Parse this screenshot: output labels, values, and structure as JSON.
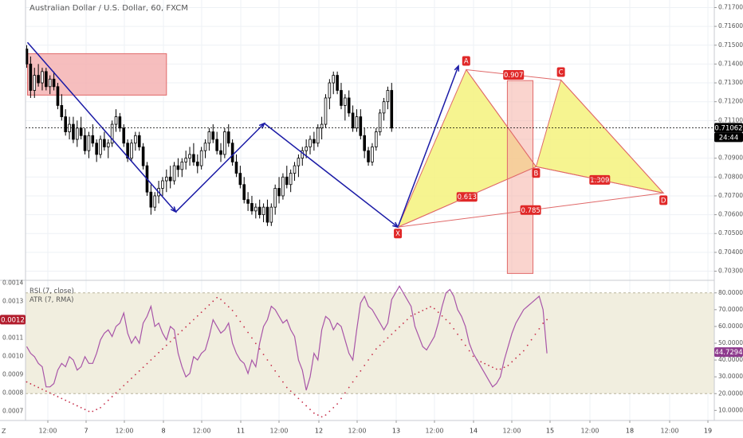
{
  "chart_data": [
    {
      "type": "candlestick",
      "title": "Australian Dollar / U.S. Dollar, 60, FXCM",
      "x_labels": [
        "12:00",
        "7",
        "12:00",
        "8",
        "12:00",
        "11",
        "12:00",
        "12",
        "12:00",
        "13",
        "12:00",
        "14",
        "12:00",
        "15",
        "12:00",
        "18",
        "12:00",
        "19"
      ],
      "price_ticks": [
        "0.71700",
        "0.71600",
        "0.71500",
        "0.71400",
        "0.71300",
        "0.71200",
        "0.71100",
        "0.71000",
        "0.70900",
        "0.70800",
        "0.70700",
        "0.70600",
        "0.70500",
        "0.70400",
        "0.70300"
      ],
      "ylim": [
        0.7026,
        0.7174
      ],
      "last_price": "0.71062",
      "countdown": "24:44",
      "candles": [
        [
          0.7148,
          0.715,
          0.7138,
          0.714
        ],
        [
          0.714,
          0.7144,
          0.7122,
          0.7126
        ],
        [
          0.7126,
          0.7138,
          0.7122,
          0.7134
        ],
        [
          0.7134,
          0.714,
          0.7128,
          0.713
        ],
        [
          0.713,
          0.7138,
          0.7126,
          0.7136
        ],
        [
          0.7136,
          0.7138,
          0.7126,
          0.7128
        ],
        [
          0.7128,
          0.7134,
          0.7124,
          0.7132
        ],
        [
          0.7132,
          0.7136,
          0.7126,
          0.7128
        ],
        [
          0.7128,
          0.713,
          0.7116,
          0.7118
        ],
        [
          0.7118,
          0.7124,
          0.711,
          0.7112
        ],
        [
          0.7112,
          0.7116,
          0.7102,
          0.7104
        ],
        [
          0.7104,
          0.7112,
          0.71,
          0.7108
        ],
        [
          0.7108,
          0.7112,
          0.7098,
          0.71
        ],
        [
          0.71,
          0.711,
          0.7096,
          0.7106
        ],
        [
          0.7106,
          0.7112,
          0.71,
          0.7102
        ],
        [
          0.7102,
          0.7106,
          0.7092,
          0.7094
        ],
        [
          0.7094,
          0.7104,
          0.709,
          0.7102
        ],
        [
          0.7102,
          0.7108,
          0.7096,
          0.7098
        ],
        [
          0.7098,
          0.71,
          0.7088,
          0.7092
        ],
        [
          0.7092,
          0.7102,
          0.709,
          0.71
        ],
        [
          0.71,
          0.7104,
          0.7094,
          0.7096
        ],
        [
          0.7096,
          0.71,
          0.709,
          0.7098
        ],
        [
          0.7098,
          0.711,
          0.7096,
          0.7108
        ],
        [
          0.7108,
          0.7116,
          0.7104,
          0.7112
        ],
        [
          0.7112,
          0.7114,
          0.7104,
          0.7106
        ],
        [
          0.7106,
          0.7108,
          0.7096,
          0.7098
        ],
        [
          0.7098,
          0.71,
          0.7088,
          0.709
        ],
        [
          0.709,
          0.71,
          0.7088,
          0.7098
        ],
        [
          0.7098,
          0.7104,
          0.7094,
          0.7102
        ],
        [
          0.7102,
          0.7104,
          0.7094,
          0.7096
        ],
        [
          0.7096,
          0.7098,
          0.7084,
          0.7086
        ],
        [
          0.7086,
          0.7088,
          0.707,
          0.7072
        ],
        [
          0.7072,
          0.7076,
          0.706,
          0.7064
        ],
        [
          0.7064,
          0.7072,
          0.7062,
          0.707
        ],
        [
          0.707,
          0.7078,
          0.7066,
          0.7074
        ],
        [
          0.7074,
          0.708,
          0.707,
          0.7078
        ],
        [
          0.7078,
          0.7084,
          0.7072,
          0.708
        ],
        [
          0.708,
          0.7086,
          0.7074,
          0.7078
        ],
        [
          0.7078,
          0.7088,
          0.7076,
          0.7086
        ],
        [
          0.7086,
          0.709,
          0.708,
          0.7084
        ],
        [
          0.7084,
          0.709,
          0.708,
          0.7088
        ],
        [
          0.7088,
          0.7094,
          0.7084,
          0.709
        ],
        [
          0.709,
          0.7096,
          0.7086,
          0.7092
        ],
        [
          0.7092,
          0.7098,
          0.7086,
          0.7088
        ],
        [
          0.7088,
          0.7092,
          0.7082,
          0.7086
        ],
        [
          0.7086,
          0.7096,
          0.7084,
          0.7094
        ],
        [
          0.7094,
          0.71,
          0.709,
          0.7098
        ],
        [
          0.7098,
          0.7106,
          0.7094,
          0.7104
        ],
        [
          0.7104,
          0.7108,
          0.7098,
          0.71
        ],
        [
          0.71,
          0.7104,
          0.7092,
          0.7094
        ],
        [
          0.7094,
          0.7098,
          0.7088,
          0.7092
        ],
        [
          0.7092,
          0.7106,
          0.709,
          0.7104
        ],
        [
          0.7104,
          0.7108,
          0.7096,
          0.7098
        ],
        [
          0.7098,
          0.71,
          0.7086,
          0.7088
        ],
        [
          0.7088,
          0.7092,
          0.708,
          0.7082
        ],
        [
          0.7082,
          0.7086,
          0.7074,
          0.7076
        ],
        [
          0.7076,
          0.708,
          0.7066,
          0.7068
        ],
        [
          0.7068,
          0.7072,
          0.7062,
          0.7066
        ],
        [
          0.7066,
          0.707,
          0.706,
          0.7062
        ],
        [
          0.7062,
          0.7066,
          0.7058,
          0.7064
        ],
        [
          0.7064,
          0.7068,
          0.7058,
          0.706
        ],
        [
          0.706,
          0.7066,
          0.7056,
          0.7064
        ],
        [
          0.7064,
          0.7068,
          0.7054,
          0.7056
        ],
        [
          0.7056,
          0.7066,
          0.7054,
          0.7064
        ],
        [
          0.7064,
          0.7076,
          0.706,
          0.7074
        ],
        [
          0.7074,
          0.708,
          0.7066,
          0.707
        ],
        [
          0.707,
          0.7082,
          0.7068,
          0.708
        ],
        [
          0.708,
          0.7086,
          0.7074,
          0.7076
        ],
        [
          0.7076,
          0.7084,
          0.7072,
          0.7082
        ],
        [
          0.7082,
          0.7088,
          0.7078,
          0.7086
        ],
        [
          0.7086,
          0.7092,
          0.708,
          0.709
        ],
        [
          0.709,
          0.7096,
          0.7086,
          0.7094
        ],
        [
          0.7094,
          0.71,
          0.709,
          0.7096
        ],
        [
          0.7096,
          0.7102,
          0.7092,
          0.71
        ],
        [
          0.71,
          0.7104,
          0.7094,
          0.7098
        ],
        [
          0.7098,
          0.7108,
          0.7096,
          0.7106
        ],
        [
          0.7106,
          0.7112,
          0.71,
          0.7108
        ],
        [
          0.7108,
          0.7124,
          0.7106,
          0.7122
        ],
        [
          0.7122,
          0.7132,
          0.7116,
          0.713
        ],
        [
          0.713,
          0.7136,
          0.7124,
          0.7134
        ],
        [
          0.7134,
          0.7136,
          0.7124,
          0.7126
        ],
        [
          0.7126,
          0.713,
          0.7116,
          0.7118
        ],
        [
          0.7118,
          0.7124,
          0.711,
          0.7122
        ],
        [
          0.7122,
          0.7126,
          0.7112,
          0.7114
        ],
        [
          0.7114,
          0.7118,
          0.7104,
          0.7106
        ],
        [
          0.7106,
          0.7116,
          0.7104,
          0.7112
        ],
        [
          0.7112,
          0.7116,
          0.71,
          0.7102
        ],
        [
          0.7102,
          0.7106,
          0.709,
          0.7094
        ],
        [
          0.7094,
          0.7096,
          0.7086,
          0.7088
        ],
        [
          0.7088,
          0.7098,
          0.7086,
          0.7096
        ],
        [
          0.7096,
          0.7106,
          0.7094,
          0.7104
        ],
        [
          0.7104,
          0.7116,
          0.7102,
          0.7114
        ],
        [
          0.7114,
          0.7122,
          0.711,
          0.712
        ],
        [
          0.712,
          0.7128,
          0.7116,
          0.7126
        ],
        [
          0.7126,
          0.713,
          0.7104,
          0.7106
        ]
      ],
      "harmonic_pattern": {
        "points": [
          {
            "label": "X",
            "time": 95.6,
            "price": 0.70534
          },
          {
            "label": "A",
            "time": 113.2,
            "price": 0.7137
          },
          {
            "label": "B",
            "time": 131.2,
            "price": 0.70855
          },
          {
            "label": "C",
            "time": 137.6,
            "price": 0.71315
          },
          {
            "label": "D",
            "time": 164.0,
            "price": 0.70715
          }
        ],
        "ratios": [
          {
            "value": "0.613",
            "from": "X",
            "via": "B"
          },
          {
            "value": "0.907",
            "from": "A",
            "via": "C"
          },
          {
            "value": "1.309",
            "from": "B",
            "via": "D"
          },
          {
            "value": "0.785",
            "from": "X",
            "via": "D"
          }
        ]
      },
      "zigzag": [
        {
          "time": 0.2,
          "price": 0.71515
        },
        {
          "time": 38.4,
          "price": 0.70615
        },
        {
          "time": 61.2,
          "price": 0.71085
        },
        {
          "time": 95.6,
          "price": 0.70534
        },
        {
          "time": 111.2,
          "price": 0.7139
        }
      ],
      "supply_zone": {
        "time_start": 0.2,
        "time_end": 36.0,
        "price_high": 0.71455,
        "price_low": 0.71235
      },
      "d_zone_box": {
        "time_start": 123.8,
        "time_end": 130.4,
        "price_high": 0.71312,
        "price_low": 0.70288
      }
    },
    {
      "type": "line",
      "legend": [
        "RSI (7, close)",
        "ATR (7, RMA)"
      ],
      "right_axis": [
        "80.0000",
        "70.0000",
        "60.0000",
        "50.0000",
        "40.0000",
        "30.0000",
        "20.0000",
        "10.0000"
      ],
      "left_axis": [
        "0.0014",
        "0.0013",
        "0.0012",
        "0.0011",
        "0.0010",
        "0.0009",
        "0.0008",
        "0.0007"
      ],
      "ylim_right": [
        4,
        87
      ],
      "ylim_left": [
        0.00065,
        0.00141
      ],
      "rsi_last": "44.7294",
      "atr_last": "0.0012",
      "rsi_band": [
        20,
        80
      ],
      "rsi": [
        48,
        44,
        42,
        38,
        36,
        24,
        24,
        26,
        34,
        38,
        36,
        42,
        40,
        34,
        36,
        42,
        38,
        38,
        44,
        52,
        56,
        58,
        54,
        60,
        62,
        68,
        56,
        50,
        54,
        50,
        62,
        66,
        72,
        60,
        62,
        56,
        52,
        60,
        58,
        44,
        36,
        30,
        32,
        42,
        40,
        44,
        46,
        54,
        64,
        60,
        56,
        58,
        62,
        50,
        44,
        40,
        38,
        32,
        40,
        36,
        50,
        60,
        64,
        72,
        70,
        66,
        62,
        64,
        58,
        54,
        40,
        34,
        22,
        30,
        44,
        40,
        58,
        66,
        64,
        58,
        62,
        60,
        52,
        44,
        40,
        58,
        74,
        78,
        72,
        70,
        66,
        62,
        58,
        62,
        76,
        80,
        84,
        80,
        76,
        72,
        60,
        54,
        48,
        46,
        50,
        54,
        62,
        72,
        80,
        82,
        78,
        70,
        66,
        60,
        50,
        44,
        40,
        36,
        32,
        28,
        24,
        26,
        30,
        40,
        48,
        56,
        62,
        66,
        70,
        72,
        74,
        76,
        78,
        70,
        44
      ],
      "atr": [
        0.00086,
        0.00085,
        0.00084,
        0.00083,
        0.00082,
        0.00081,
        0.0008,
        0.00079,
        0.00078,
        0.00077,
        0.00076,
        0.00075,
        0.00074,
        0.00073,
        0.00072,
        0.00071,
        0.0007,
        0.0007,
        0.00071,
        0.00072,
        0.00074,
        0.00076,
        0.00078,
        0.0008,
        0.00082,
        0.00084,
        0.00086,
        0.00088,
        0.0009,
        0.00092,
        0.00094,
        0.00096,
        0.00098,
        0.001,
        0.00102,
        0.00104,
        0.00106,
        0.00108,
        0.0011,
        0.00112,
        0.00114,
        0.00116,
        0.00118,
        0.0012,
        0.00122,
        0.00124,
        0.00126,
        0.00128,
        0.0013,
        0.00132,
        0.00131,
        0.00129,
        0.00127,
        0.00125,
        0.00122,
        0.00119,
        0.00116,
        0.00113,
        0.0011,
        0.00107,
        0.00104,
        0.00101,
        0.00098,
        0.00095,
        0.00092,
        0.00089,
        0.00086,
        0.00083,
        0.00081,
        0.00079,
        0.00077,
        0.00075,
        0.00073,
        0.00071,
        0.00069,
        0.00068,
        0.00067,
        0.00068,
        0.0007,
        0.00072,
        0.00074,
        0.00077,
        0.0008,
        0.00083,
        0.00086,
        0.00089,
        0.00092,
        0.00095,
        0.00098,
        0.00101,
        0.00104,
        0.00106,
        0.00108,
        0.0011,
        0.00112,
        0.00114,
        0.00116,
        0.00118,
        0.0012,
        0.00122,
        0.00123,
        0.00124,
        0.00125,
        0.00126,
        0.00127,
        0.00126,
        0.00124,
        0.00122,
        0.0012,
        0.00118,
        0.00115,
        0.00112,
        0.00109,
        0.00106,
        0.00103,
        0.001,
        0.00098,
        0.00097,
        0.00096,
        0.00095,
        0.00094,
        0.00093,
        0.00093,
        0.00094,
        0.00095,
        0.00097,
        0.00099,
        0.00101,
        0.00103,
        0.00106,
        0.00109,
        0.00112,
        0.00115,
        0.00118,
        0.0012
      ]
    }
  ],
  "symbol_title": "Australian Dollar / U.S. Dollar, 60, FXCM",
  "corner_label": "Z",
  "colors": {
    "up": "#ffffff",
    "down": "#000000",
    "pattern_fill": "#f5f27c",
    "pattern_stroke": "#e06969",
    "label_bg": "#e02828",
    "zigzag": "#1a1aa6",
    "rsi_line": "#a855a8",
    "rsi_band_fill": "#f1eedf",
    "atr_dots": "#c62f4a",
    "supply_zone_fill": "#f4b3b3",
    "supply_zone_stroke": "#e06969",
    "last_price_bg": "#000000",
    "rsi_last_bg": "#8e3b8e",
    "atr_last_bg": "#b21d2d",
    "grid": "#eef1f5",
    "axis_text": "#555555"
  }
}
